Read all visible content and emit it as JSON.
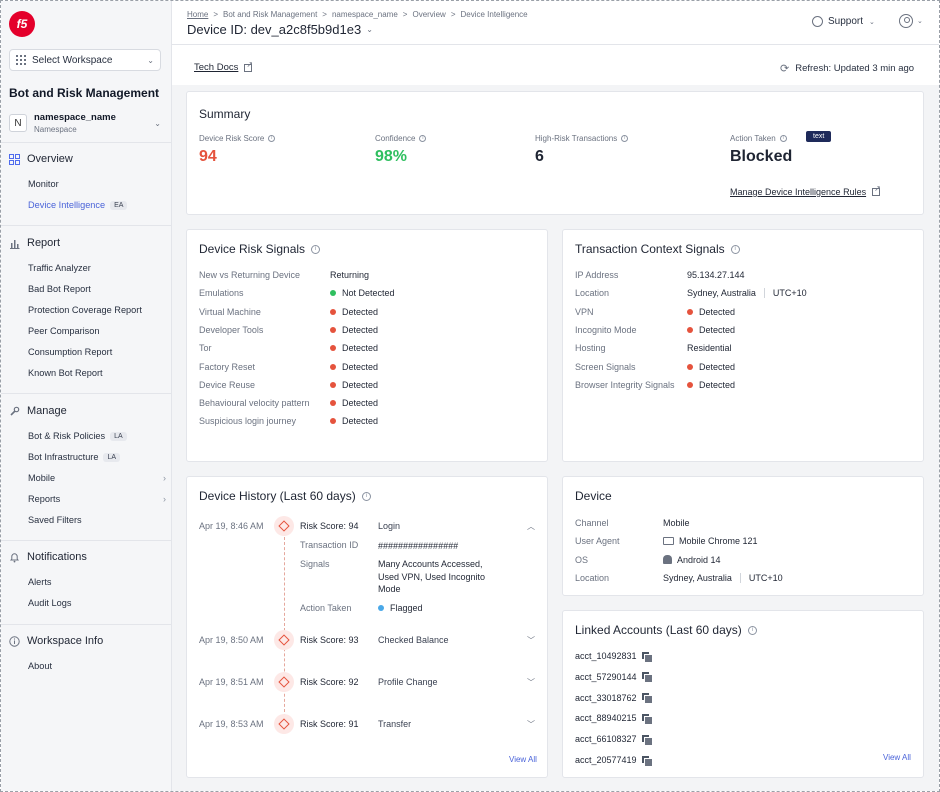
{
  "sidebar": {
    "logo": "f5",
    "workspace_select": "Select Workspace",
    "app_title": "Bot and Risk Management",
    "namespace_initial": "N",
    "namespace_name": "namespace_name",
    "namespace_label": "Namespace",
    "sections": {
      "overview": "Overview",
      "report": "Report",
      "manage": "Manage",
      "notifications": "Notifications",
      "workspace_info": "Workspace Info"
    },
    "overview_items": [
      "Monitor",
      "Device Intelligence"
    ],
    "overview_badge": "EA",
    "report_items": [
      "Traffic Analyzer",
      "Bad Bot Report",
      "Protection Coverage Report",
      "Peer Comparison",
      "Consumption Report",
      "Known Bot Report"
    ],
    "manage_items": [
      "Bot & Risk Policies",
      "Bot Infrastructure",
      "Mobile",
      "Reports",
      "Saved Filters"
    ],
    "manage_badge": "LA",
    "notifications_items": [
      "Alerts",
      "Audit Logs"
    ],
    "workspace_info_items": [
      "About"
    ]
  },
  "header": {
    "breadcrumb": [
      "Home",
      "Bot and Risk Management",
      "namespace_name",
      "Overview",
      "Device Intelligence"
    ],
    "breadcrumb_sep": ">",
    "title": "Device ID: dev_a2c8f5b9d1e3",
    "support": "Support",
    "tech_docs": "Tech Docs",
    "refresh": "Refresh: Updated 3 min ago"
  },
  "summary": {
    "title": "Summary",
    "metrics": [
      {
        "label": "Device Risk Score",
        "value": "94",
        "color": "#e5533d"
      },
      {
        "label": "Confidence",
        "value": "98%",
        "color": "#2fbf5f"
      },
      {
        "label": "High-Risk Transactions",
        "value": "6",
        "color": "#1f2533"
      },
      {
        "label": "Action Taken",
        "value": "Blocked",
        "color": "#1f2533"
      }
    ],
    "tag": "text",
    "manage_link": "Manage Device Intelligence Rules"
  },
  "risk_signals": {
    "title": "Device Risk Signals",
    "rows": [
      {
        "label": "New vs Returning Device",
        "value": "Returning",
        "dot": ""
      },
      {
        "label": "Emulations",
        "value": "Not Detected",
        "dot": "#2fbf5f"
      },
      {
        "label": "Virtual Machine",
        "value": "Detected",
        "dot": "#e5533d"
      },
      {
        "label": "Developer Tools",
        "value": "Detected",
        "dot": "#e5533d"
      },
      {
        "label": "Tor",
        "value": "Detected",
        "dot": "#e5533d"
      },
      {
        "label": "Factory Reset",
        "value": "Detected",
        "dot": "#e5533d"
      },
      {
        "label": "Device Reuse",
        "value": "Detected",
        "dot": "#e5533d"
      },
      {
        "label": "Behavioural velocity pattern",
        "value": "Detected",
        "dot": "#e5533d"
      },
      {
        "label": "Suspicious login journey",
        "value": "Detected",
        "dot": "#e5533d"
      }
    ]
  },
  "transaction_signals": {
    "title": "Transaction Context Signals",
    "rows": [
      {
        "label": "IP Address",
        "value": "95.134.27.144",
        "dot": "",
        "extra": ""
      },
      {
        "label": "Location",
        "value": "Sydney, Australia",
        "dot": "",
        "extra": "UTC+10"
      },
      {
        "label": "VPN",
        "value": "Detected",
        "dot": "#e5533d",
        "extra": ""
      },
      {
        "label": "Incognito Mode",
        "value": "Detected",
        "dot": "#e5533d",
        "extra": ""
      },
      {
        "label": "Hosting",
        "value": "Residential",
        "dot": "",
        "extra": ""
      },
      {
        "label": "Screen Signals",
        "value": "Detected",
        "dot": "#e5533d",
        "extra": ""
      },
      {
        "label": "Browser Integrity Signals",
        "value": "Detected",
        "dot": "#e5533d",
        "extra": ""
      }
    ]
  },
  "history": {
    "title": "Device History (Last 60 days)",
    "entries": [
      {
        "time": "Apr 19, 8:46 AM",
        "score": "Risk Score: 94",
        "event": "Login",
        "expanded": true
      },
      {
        "time": "Apr 19, 8:50 AM",
        "score": "Risk Score: 93",
        "event": "Checked Balance",
        "expanded": false
      },
      {
        "time": "Apr 19, 8:51 AM",
        "score": "Risk Score: 92",
        "event": "Profile Change",
        "expanded": false
      },
      {
        "time": "Apr 19, 8:53 AM",
        "score": "Risk Score: 91",
        "event": "Transfer",
        "expanded": false
      }
    ],
    "detail": {
      "transaction_id_label": "Transaction ID",
      "transaction_id": "################",
      "signals_label": "Signals",
      "signals_lines": [
        "Many Accounts Accessed,",
        "Used VPN, Used Incognito",
        "Mode"
      ],
      "action_label": "Action Taken",
      "action": "Flagged",
      "action_dot": "#4aa8e8"
    },
    "view_all": "View All"
  },
  "device": {
    "title": "Device",
    "rows": [
      {
        "label": "Channel",
        "value": "Mobile",
        "icon": "",
        "extra": ""
      },
      {
        "label": "User Agent",
        "value": "Mobile Chrome 121",
        "icon": "monitor-icon",
        "extra": ""
      },
      {
        "label": "OS",
        "value": "Android 14",
        "icon": "android-icon",
        "extra": ""
      },
      {
        "label": "Location",
        "value": "Sydney, Australia",
        "icon": "",
        "extra": "UTC+10"
      }
    ]
  },
  "linked": {
    "title": "Linked Accounts (Last 60 days)",
    "accounts": [
      "acct_10492831",
      "acct_57290144",
      "acct_33018762",
      "acct_88940215",
      "acct_66108327",
      "acct_20577419"
    ],
    "view_all": "View All"
  }
}
